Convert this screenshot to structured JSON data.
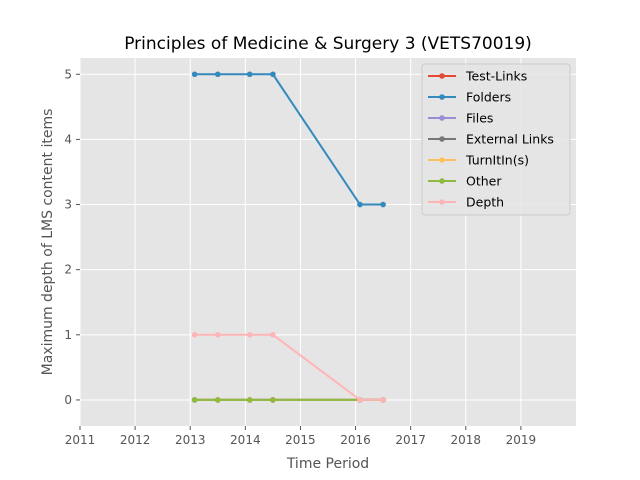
{
  "chart_data": {
    "type": "line",
    "title": "Principles of Medicine & Surgery 3 (VETS70019)",
    "xlabel": "Time Period",
    "ylabel": "Maximum depth of LMS content items",
    "xlim": [
      2011,
      2020
    ],
    "ylim": [
      -0.4,
      5.25
    ],
    "xticks": [
      2011,
      2012,
      2013,
      2014,
      2015,
      2016,
      2017,
      2018,
      2019
    ],
    "yticks": [
      0,
      1,
      2,
      3,
      4,
      5
    ],
    "grid": true,
    "legend_position": "top-right",
    "x": [
      2013.08,
      2013.5,
      2014.08,
      2014.5,
      2016.08,
      2016.5
    ],
    "series": [
      {
        "name": "Test-Links",
        "color": "#E24A33",
        "values": [
          0,
          0,
          0,
          0,
          0,
          0
        ]
      },
      {
        "name": "Folders",
        "color": "#348ABD",
        "values": [
          5,
          5,
          5,
          5,
          3,
          3
        ]
      },
      {
        "name": "Files",
        "color": "#988ED5",
        "values": [
          0,
          0,
          0,
          0,
          0,
          0
        ]
      },
      {
        "name": "External Links",
        "color": "#777777",
        "values": [
          0,
          0,
          0,
          0,
          0,
          0
        ]
      },
      {
        "name": "TurnItIn(s)",
        "color": "#FBC15E",
        "values": [
          0,
          0,
          0,
          0,
          0,
          0
        ]
      },
      {
        "name": "Other",
        "color": "#8EBA42",
        "values": [
          0,
          0,
          0,
          0,
          0,
          0
        ]
      },
      {
        "name": "Depth",
        "color": "#FFB5B8",
        "values": [
          1,
          1,
          1,
          1,
          0,
          0
        ]
      }
    ]
  }
}
